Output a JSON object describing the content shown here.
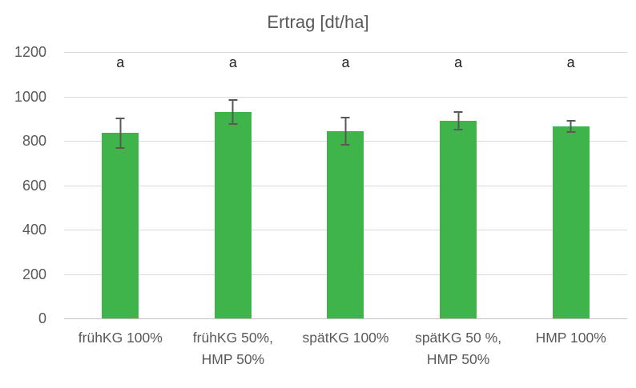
{
  "chart_data": {
    "type": "bar",
    "title": "Ertrag [dt/ha]",
    "categories": [
      "frühKG 100%",
      "frühKG 50%,\nHMP 50%",
      "spätKG 100%",
      "spätKG 50 %,\nHMP 50%",
      "HMP 100%"
    ],
    "values": [
      835,
      930,
      845,
      890,
      865
    ],
    "errors": [
      70,
      57,
      65,
      42,
      30
    ],
    "significance_letters": [
      "a",
      "a",
      "a",
      "a",
      "a"
    ],
    "ylim": [
      0,
      1200
    ],
    "yticks": [
      0,
      200,
      400,
      600,
      800,
      1000,
      1200
    ],
    "xlabel": "",
    "ylabel": "",
    "grid": true,
    "legend": "none",
    "bar_color": "#3eb44a",
    "error_bar_color": "#595959",
    "gridline_color": "#d9d9d9",
    "axis_text_color": "#595959",
    "letter_color": "#1f1f1f"
  }
}
